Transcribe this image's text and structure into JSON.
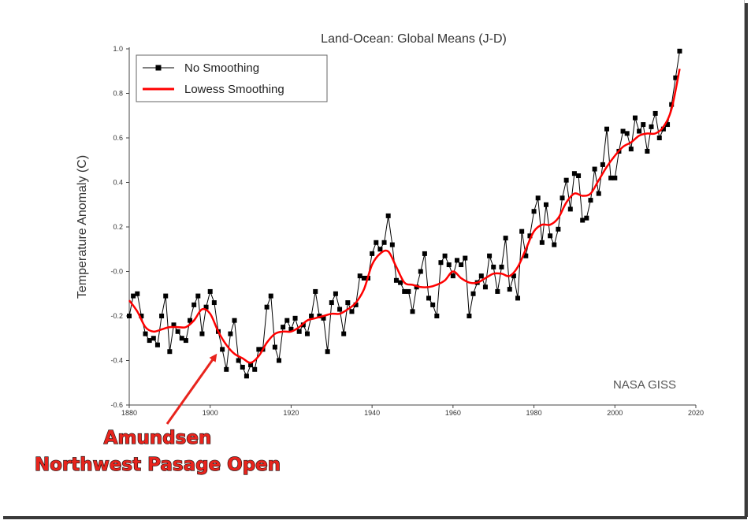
{
  "chart_data": {
    "type": "line",
    "title": "Land-Ocean: Global Means (J-D)",
    "ylabel": "Temperature Anomaly (C)",
    "xlabel": "",
    "xlim": [
      1880,
      2020
    ],
    "ylim": [
      -0.6,
      1.0
    ],
    "xticks": [
      "1880",
      "1900",
      "1920",
      "1940",
      "1960",
      "1980",
      "2000",
      "2020"
    ],
    "yticks": [
      "1.0",
      "0.8",
      "0.6",
      "0.4",
      "0.2",
      "-0.0",
      "-0.2",
      "-0.4",
      "-0.6"
    ],
    "legend": {
      "placement": "top-left"
    },
    "colors": {
      "raw": "#000000",
      "smooth": "#ff0000",
      "annotation": "#e8241d"
    },
    "series": [
      {
        "name": "No Smoothing",
        "x": [
          1880,
          1881,
          1882,
          1883,
          1884,
          1885,
          1886,
          1887,
          1888,
          1889,
          1890,
          1891,
          1892,
          1893,
          1894,
          1895,
          1896,
          1897,
          1898,
          1899,
          1900,
          1901,
          1902,
          1903,
          1904,
          1905,
          1906,
          1907,
          1908,
          1909,
          1910,
          1911,
          1912,
          1913,
          1914,
          1915,
          1916,
          1917,
          1918,
          1919,
          1920,
          1921,
          1922,
          1923,
          1924,
          1925,
          1926,
          1927,
          1928,
          1929,
          1930,
          1931,
          1932,
          1933,
          1934,
          1935,
          1936,
          1937,
          1938,
          1939,
          1940,
          1941,
          1942,
          1943,
          1944,
          1945,
          1946,
          1947,
          1948,
          1949,
          1950,
          1951,
          1952,
          1953,
          1954,
          1955,
          1956,
          1957,
          1958,
          1959,
          1960,
          1961,
          1962,
          1963,
          1964,
          1965,
          1966,
          1967,
          1968,
          1969,
          1970,
          1971,
          1972,
          1973,
          1974,
          1975,
          1976,
          1977,
          1978,
          1979,
          1980,
          1981,
          1982,
          1983,
          1984,
          1985,
          1986,
          1987,
          1988,
          1989,
          1990,
          1991,
          1992,
          1993,
          1994,
          1995,
          1996,
          1997,
          1998,
          1999,
          2000,
          2001,
          2002,
          2003,
          2004,
          2005,
          2006,
          2007,
          2008,
          2009,
          2010,
          2011,
          2012,
          2013,
          2014,
          2015,
          2016
        ],
        "y": [
          -0.2,
          -0.11,
          -0.1,
          -0.2,
          -0.28,
          -0.31,
          -0.3,
          -0.33,
          -0.2,
          -0.11,
          -0.36,
          -0.24,
          -0.27,
          -0.3,
          -0.31,
          -0.22,
          -0.15,
          -0.11,
          -0.28,
          -0.16,
          -0.09,
          -0.14,
          -0.27,
          -0.35,
          -0.44,
          -0.28,
          -0.22,
          -0.4,
          -0.43,
          -0.47,
          -0.42,
          -0.44,
          -0.35,
          -0.35,
          -0.16,
          -0.11,
          -0.34,
          -0.4,
          -0.25,
          -0.22,
          -0.26,
          -0.21,
          -0.27,
          -0.24,
          -0.28,
          -0.2,
          -0.09,
          -0.2,
          -0.21,
          -0.36,
          -0.14,
          -0.1,
          -0.17,
          -0.28,
          -0.14,
          -0.18,
          -0.15,
          -0.02,
          -0.03,
          -0.03,
          0.08,
          0.13,
          0.1,
          0.13,
          0.25,
          0.12,
          -0.04,
          -0.05,
          -0.09,
          -0.09,
          -0.18,
          -0.07,
          0.0,
          0.08,
          -0.12,
          -0.15,
          -0.2,
          0.04,
          0.07,
          0.03,
          -0.02,
          0.05,
          0.03,
          0.06,
          -0.2,
          -0.1,
          -0.05,
          -0.02,
          -0.07,
          0.07,
          0.02,
          -0.09,
          0.02,
          0.15,
          -0.08,
          -0.02,
          -0.12,
          0.18,
          0.07,
          0.16,
          0.27,
          0.33,
          0.13,
          0.3,
          0.16,
          0.12,
          0.19,
          0.33,
          0.41,
          0.28,
          0.44,
          0.43,
          0.23,
          0.24,
          0.32,
          0.46,
          0.35,
          0.48,
          0.64,
          0.42,
          0.42,
          0.54,
          0.63,
          0.62,
          0.55,
          0.69,
          0.63,
          0.66,
          0.54,
          0.65,
          0.71,
          0.6,
          0.64,
          0.66,
          0.75,
          0.87,
          0.99
        ]
      },
      {
        "name": "Lowess Smoothing",
        "x": [
          1880,
          1882,
          1884,
          1886,
          1888,
          1890,
          1892,
          1894,
          1896,
          1898,
          1900,
          1902,
          1904,
          1906,
          1908,
          1910,
          1912,
          1914,
          1916,
          1918,
          1920,
          1922,
          1924,
          1926,
          1928,
          1930,
          1932,
          1934,
          1936,
          1938,
          1940,
          1942,
          1944,
          1946,
          1948,
          1950,
          1952,
          1954,
          1956,
          1958,
          1960,
          1962,
          1964,
          1966,
          1968,
          1970,
          1972,
          1974,
          1976,
          1978,
          1980,
          1982,
          1984,
          1986,
          1988,
          1990,
          1992,
          1994,
          1996,
          1998,
          2000,
          2002,
          2004,
          2006,
          2008,
          2010,
          2012,
          2014,
          2016
        ],
        "y": [
          -0.13,
          -0.18,
          -0.25,
          -0.27,
          -0.26,
          -0.25,
          -0.25,
          -0.25,
          -0.22,
          -0.17,
          -0.19,
          -0.27,
          -0.33,
          -0.37,
          -0.39,
          -0.41,
          -0.38,
          -0.32,
          -0.28,
          -0.27,
          -0.27,
          -0.25,
          -0.22,
          -0.21,
          -0.2,
          -0.19,
          -0.19,
          -0.17,
          -0.14,
          -0.08,
          0.03,
          0.08,
          0.09,
          0.02,
          -0.05,
          -0.06,
          -0.07,
          -0.07,
          -0.06,
          -0.04,
          0.0,
          -0.03,
          -0.05,
          -0.05,
          -0.03,
          -0.01,
          -0.01,
          -0.02,
          0.02,
          0.1,
          0.18,
          0.21,
          0.21,
          0.24,
          0.31,
          0.35,
          0.34,
          0.35,
          0.41,
          0.47,
          0.52,
          0.56,
          0.58,
          0.61,
          0.62,
          0.62,
          0.65,
          0.73,
          0.91
        ]
      }
    ],
    "annotations": {
      "source": "NASA GISS",
      "callout_line1": "Amundsen",
      "callout_line2": "Northwest Pasage Open",
      "callout_target_year": 1902,
      "callout_target_value": -0.37
    }
  }
}
